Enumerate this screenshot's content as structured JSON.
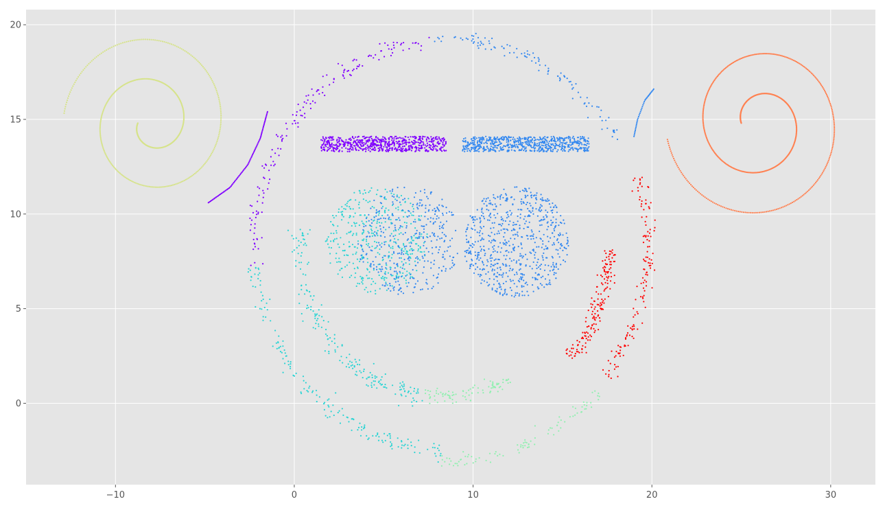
{
  "chart_data": {
    "type": "scatter",
    "title": "",
    "xlabel": "",
    "ylabel": "",
    "xlim": [
      -15,
      32.5
    ],
    "ylim": [
      -4.3,
      20.8
    ],
    "grid": true,
    "x_ticks": [
      -10,
      0,
      10,
      20,
      30
    ],
    "y_ticks": [
      0,
      5,
      10,
      15,
      20
    ],
    "x_tick_labels": [
      "−10",
      "0",
      "10",
      "20",
      "30"
    ],
    "y_tick_labels": [
      "0",
      "5",
      "10",
      "15",
      "20"
    ],
    "colors": {
      "purple": "#8000ff",
      "blue": "#3388f0",
      "cyan": "#2ad4d4",
      "mint": "#90f0b0",
      "yellow_green": "#d6e38a",
      "orange": "#ff8050",
      "red": "#ff0000"
    },
    "series": [
      {
        "color": "purple",
        "shape": "noisy-arc",
        "center": [
          8.6,
          8.4
        ],
        "radius": 10.8,
        "from_deg": 95,
        "to_deg": 186,
        "noise": 0.35,
        "n": 160
      },
      {
        "color": "cyan",
        "shape": "noisy-arc",
        "center": [
          8.6,
          8.4
        ],
        "radius": 10.9,
        "from_deg": 186,
        "to_deg": 268,
        "noise": 0.35,
        "n": 170
      },
      {
        "color": "mint",
        "shape": "noisy-arc",
        "center": [
          8.6,
          8.4
        ],
        "radius": 11.4,
        "from_deg": 268,
        "to_deg": 318,
        "noise": 0.3,
        "n": 90
      },
      {
        "color": "red",
        "shape": "noisy-arc",
        "center": [
          8.6,
          8.4
        ],
        "radius": 11.2,
        "from_deg": 322,
        "to_deg": 380,
        "noise": 0.35,
        "n": 140
      },
      {
        "color": "blue",
        "shape": "noisy-arc",
        "center": [
          8.6,
          8.4
        ],
        "radius": 10.9,
        "from_deg": 30,
        "to_deg": 95,
        "noise": 0.3,
        "n": 110
      },
      {
        "color": "cyan",
        "shape": "noisy-arc",
        "center": [
          8.4,
          8.3
        ],
        "radius": 8.1,
        "from_deg": 173,
        "to_deg": 262,
        "noise": 0.4,
        "n": 190
      },
      {
        "color": "mint",
        "shape": "noisy-arc",
        "center": [
          8.4,
          8.3
        ],
        "radius": 7.9,
        "from_deg": 262,
        "to_deg": 298,
        "noise": 0.3,
        "n": 90
      },
      {
        "color": "red",
        "shape": "noisy-arc",
        "center": [
          8.4,
          8.3
        ],
        "radius": 9.2,
        "from_deg": 320,
        "to_deg": 359,
        "noise": 0.35,
        "n": 170
      },
      {
        "color": "purple",
        "shape": "rect",
        "x": [
          1.5,
          8.5
        ],
        "y": [
          13.3,
          14.1
        ],
        "n": 650
      },
      {
        "color": "blue",
        "shape": "rect",
        "x": [
          9.4,
          16.5
        ],
        "y": [
          13.3,
          14.1
        ],
        "n": 650
      },
      {
        "color": "cyan",
        "shape": "disk",
        "center": [
          4.6,
          8.6
        ],
        "radius": 2.85,
        "n": 420
      },
      {
        "color": "blue",
        "shape": "disk",
        "center": [
          6.4,
          8.6
        ],
        "radius": 2.9,
        "n": 380
      },
      {
        "color": "blue",
        "shape": "disk",
        "center": [
          12.4,
          8.5
        ],
        "radius": 2.95,
        "n": 700
      },
      {
        "color": "yellow_green",
        "shape": "spiral",
        "center": [
          -8.0,
          14.8
        ],
        "a0": 0.75,
        "a1": 4.9,
        "t0": 3.14,
        "t1": 15.6,
        "n": 520,
        "flip": 1
      },
      {
        "color": "purple",
        "shape": "curve",
        "points": [
          [
            -4.8,
            10.6
          ],
          [
            -3.6,
            11.4
          ],
          [
            -2.6,
            12.6
          ],
          [
            -1.9,
            14.0
          ],
          [
            -1.5,
            15.4
          ]
        ],
        "n": 80
      },
      {
        "color": "orange",
        "shape": "spiral",
        "center": [
          26.0,
          14.8
        ],
        "a0": 1.0,
        "a1": 5.2,
        "t0": 0.0,
        "t1": 12.4,
        "n": 600,
        "flip": -1
      },
      {
        "color": "blue",
        "shape": "curve",
        "points": [
          [
            19.0,
            14.1
          ],
          [
            19.2,
            15.0
          ],
          [
            19.6,
            16.0
          ],
          [
            20.1,
            16.6
          ]
        ],
        "n": 35
      }
    ]
  }
}
